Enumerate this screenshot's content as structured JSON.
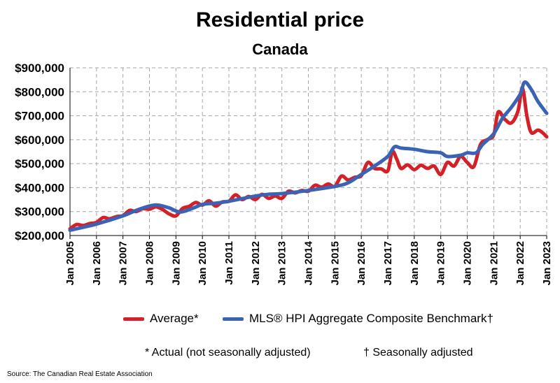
{
  "title": "Residential price",
  "subtitle": "Canada",
  "footnotes": {
    "actual": "* Actual (not seasonally adjusted)",
    "seasonal": "† Seasonally adjusted"
  },
  "source": "Source: The Canadian Real Estate Association",
  "colors": {
    "average": "#d42127",
    "hpi": "#3b63b5",
    "grid": "#a6a6a6"
  },
  "chart_data": {
    "type": "line",
    "ylim": [
      200000,
      900000
    ],
    "yticks": [
      200000,
      300000,
      400000,
      500000,
      600000,
      700000,
      800000,
      900000
    ],
    "ytick_labels": [
      "$200,000",
      "$300,000",
      "$400,000",
      "$500,000",
      "$600,000",
      "$700,000",
      "$800,000",
      "$900,000"
    ],
    "xlim": [
      "2005-01",
      "2023-01"
    ],
    "xtick_labels": [
      "Jan 2005",
      "Jan 2006",
      "Jan 2007",
      "Jan 2008",
      "Jan 2009",
      "Jan 2010",
      "Jan 2011",
      "Jan 2012",
      "Jan 2013",
      "Jan 2014",
      "Jan 2015",
      "Jan 2016",
      "Jan 2017",
      "Jan 2018",
      "Jan 2019",
      "Jan 2020",
      "Jan 2021",
      "Jan 2022",
      "Jan 2023"
    ],
    "grid": "dashed",
    "legend_position": "bottom",
    "series": [
      {
        "name": "Average*",
        "color": "#d42127",
        "points": [
          [
            "2005-01",
            228000
          ],
          [
            "2005-04",
            246000
          ],
          [
            "2005-07",
            242000
          ],
          [
            "2005-10",
            250000
          ],
          [
            "2006-01",
            255000
          ],
          [
            "2006-04",
            275000
          ],
          [
            "2006-07",
            270000
          ],
          [
            "2006-10",
            279000
          ],
          [
            "2007-01",
            283000
          ],
          [
            "2007-04",
            305000
          ],
          [
            "2007-07",
            300000
          ],
          [
            "2007-10",
            312000
          ],
          [
            "2008-01",
            310000
          ],
          [
            "2008-04",
            320000
          ],
          [
            "2008-07",
            308000
          ],
          [
            "2008-10",
            290000
          ],
          [
            "2009-01",
            282000
          ],
          [
            "2009-04",
            313000
          ],
          [
            "2009-07",
            322000
          ],
          [
            "2009-10",
            338000
          ],
          [
            "2010-01",
            327000
          ],
          [
            "2010-04",
            345000
          ],
          [
            "2010-07",
            323000
          ],
          [
            "2010-10",
            340000
          ],
          [
            "2011-01",
            343000
          ],
          [
            "2011-04",
            370000
          ],
          [
            "2011-07",
            350000
          ],
          [
            "2011-10",
            363000
          ],
          [
            "2012-01",
            350000
          ],
          [
            "2012-04",
            372000
          ],
          [
            "2012-07",
            355000
          ],
          [
            "2012-10",
            365000
          ],
          [
            "2013-01",
            355000
          ],
          [
            "2013-04",
            385000
          ],
          [
            "2013-07",
            378000
          ],
          [
            "2013-10",
            388000
          ],
          [
            "2014-01",
            385000
          ],
          [
            "2014-04",
            410000
          ],
          [
            "2014-07",
            402000
          ],
          [
            "2014-10",
            415000
          ],
          [
            "2015-01",
            405000
          ],
          [
            "2015-04",
            448000
          ],
          [
            "2015-07",
            432000
          ],
          [
            "2015-10",
            443000
          ],
          [
            "2016-01",
            450000
          ],
          [
            "2016-04",
            505000
          ],
          [
            "2016-07",
            480000
          ],
          [
            "2016-10",
            478000
          ],
          [
            "2017-01",
            470000
          ],
          [
            "2017-03",
            550000
          ],
          [
            "2017-05",
            520000
          ],
          [
            "2017-07",
            480000
          ],
          [
            "2017-10",
            495000
          ],
          [
            "2018-01",
            475000
          ],
          [
            "2018-04",
            493000
          ],
          [
            "2018-07",
            480000
          ],
          [
            "2018-10",
            490000
          ],
          [
            "2019-01",
            455000
          ],
          [
            "2019-04",
            505000
          ],
          [
            "2019-07",
            490000
          ],
          [
            "2019-10",
            530000
          ],
          [
            "2020-01",
            505000
          ],
          [
            "2020-04",
            488000
          ],
          [
            "2020-07",
            580000
          ],
          [
            "2020-10",
            600000
          ],
          [
            "2021-01",
            620000
          ],
          [
            "2021-03",
            715000
          ],
          [
            "2021-06",
            685000
          ],
          [
            "2021-09",
            670000
          ],
          [
            "2021-12",
            720000
          ],
          [
            "2022-02",
            815000
          ],
          [
            "2022-04",
            700000
          ],
          [
            "2022-06",
            630000
          ],
          [
            "2022-09",
            640000
          ],
          [
            "2022-11",
            630000
          ],
          [
            "2023-01",
            612000
          ]
        ]
      },
      {
        "name": "MLS® HPI Aggregate Composite Benchmark†",
        "color": "#3b63b5",
        "points": [
          [
            "2005-01",
            222000
          ],
          [
            "2006-01",
            248000
          ],
          [
            "2007-01",
            282000
          ],
          [
            "2007-07",
            305000
          ],
          [
            "2008-01",
            323000
          ],
          [
            "2008-05",
            327000
          ],
          [
            "2008-10",
            315000
          ],
          [
            "2009-03",
            298000
          ],
          [
            "2009-09",
            315000
          ],
          [
            "2010-01",
            330000
          ],
          [
            "2010-07",
            335000
          ],
          [
            "2011-01",
            343000
          ],
          [
            "2012-01",
            365000
          ],
          [
            "2012-07",
            372000
          ],
          [
            "2013-01",
            375000
          ],
          [
            "2014-01",
            388000
          ],
          [
            "2015-01",
            405000
          ],
          [
            "2015-07",
            420000
          ],
          [
            "2016-01",
            455000
          ],
          [
            "2016-07",
            490000
          ],
          [
            "2017-01",
            530000
          ],
          [
            "2017-04",
            570000
          ],
          [
            "2017-07",
            565000
          ],
          [
            "2018-01",
            560000
          ],
          [
            "2018-07",
            550000
          ],
          [
            "2019-01",
            545000
          ],
          [
            "2019-04",
            530000
          ],
          [
            "2019-10",
            535000
          ],
          [
            "2020-01",
            545000
          ],
          [
            "2020-05",
            545000
          ],
          [
            "2020-08",
            580000
          ],
          [
            "2021-01",
            625000
          ],
          [
            "2021-05",
            690000
          ],
          [
            "2021-09",
            735000
          ],
          [
            "2022-01",
            790000
          ],
          [
            "2022-03",
            840000
          ],
          [
            "2022-06",
            810000
          ],
          [
            "2022-09",
            760000
          ],
          [
            "2023-01",
            710000
          ]
        ]
      }
    ]
  }
}
